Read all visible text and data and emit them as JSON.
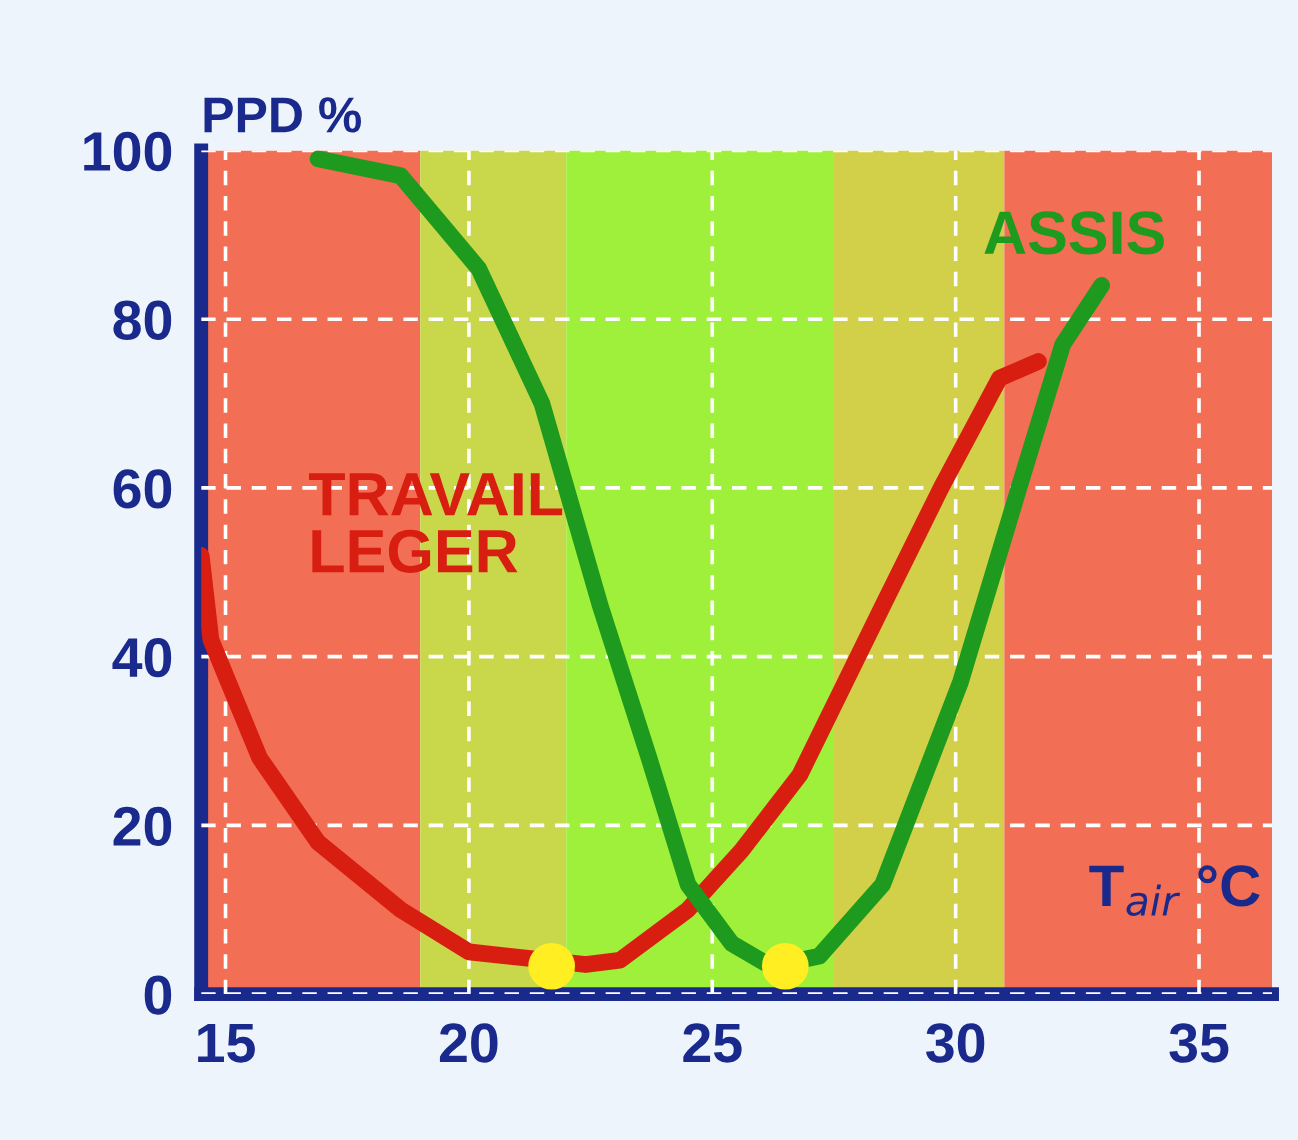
{
  "chart_data": {
    "type": "line",
    "xlabel": "T$_{air}$ °C",
    "ylabel": "PPD %",
    "xlim": [
      14.5,
      36.5
    ],
    "ylim": [
      0,
      100
    ],
    "xticks": [
      15,
      20,
      25,
      30,
      35
    ],
    "yticks": [
      0,
      20,
      40,
      60,
      80,
      100
    ],
    "grid": true,
    "line_style": "solid",
    "marker": "none",
    "bands": [
      {
        "axis": "x",
        "from": 14.5,
        "to": 19,
        "color": "#f26e55"
      },
      {
        "axis": "x",
        "from": 19,
        "to": 22,
        "color": "#c8d84a"
      },
      {
        "axis": "x",
        "from": 22,
        "to": 27.5,
        "color": "#9ef03a"
      },
      {
        "axis": "x",
        "from": 27.5,
        "to": 31,
        "color": "#d2d048"
      },
      {
        "axis": "x",
        "from": 31,
        "to": 36.5,
        "color": "#f26e55"
      }
    ],
    "series": [
      {
        "name": "TRAVAIL\nLEGER",
        "color": "#d81e10",
        "x": [
          14.5,
          14.7,
          15.7,
          16.9,
          18.6,
          20,
          22.4,
          23.1,
          24.5,
          25.6,
          26.8,
          28.5,
          29.7,
          30.9,
          31.7
        ],
        "values": [
          52,
          42,
          28,
          18,
          10,
          5,
          3.5,
          4,
          10,
          17,
          26,
          46,
          60,
          73,
          75
        ]
      },
      {
        "name": "ASSIS",
        "color": "#1e9a1e",
        "x": [
          16.9,
          18.6,
          20.2,
          21.5,
          22.7,
          23.7,
          24.5,
          25.4,
          26.2,
          27.2,
          28.5,
          30.1,
          31.3,
          32.2,
          33
        ],
        "values": [
          99,
          97,
          86,
          70,
          46,
          28,
          13,
          6,
          3.3,
          4.5,
          13,
          37,
          60,
          77,
          84
        ]
      },
      {
        "type": "scatter",
        "color": "#ffee22",
        "marker": "circle",
        "x": [
          21.7,
          26.5
        ],
        "values": [
          3.3,
          3.3
        ]
      }
    ]
  }
}
